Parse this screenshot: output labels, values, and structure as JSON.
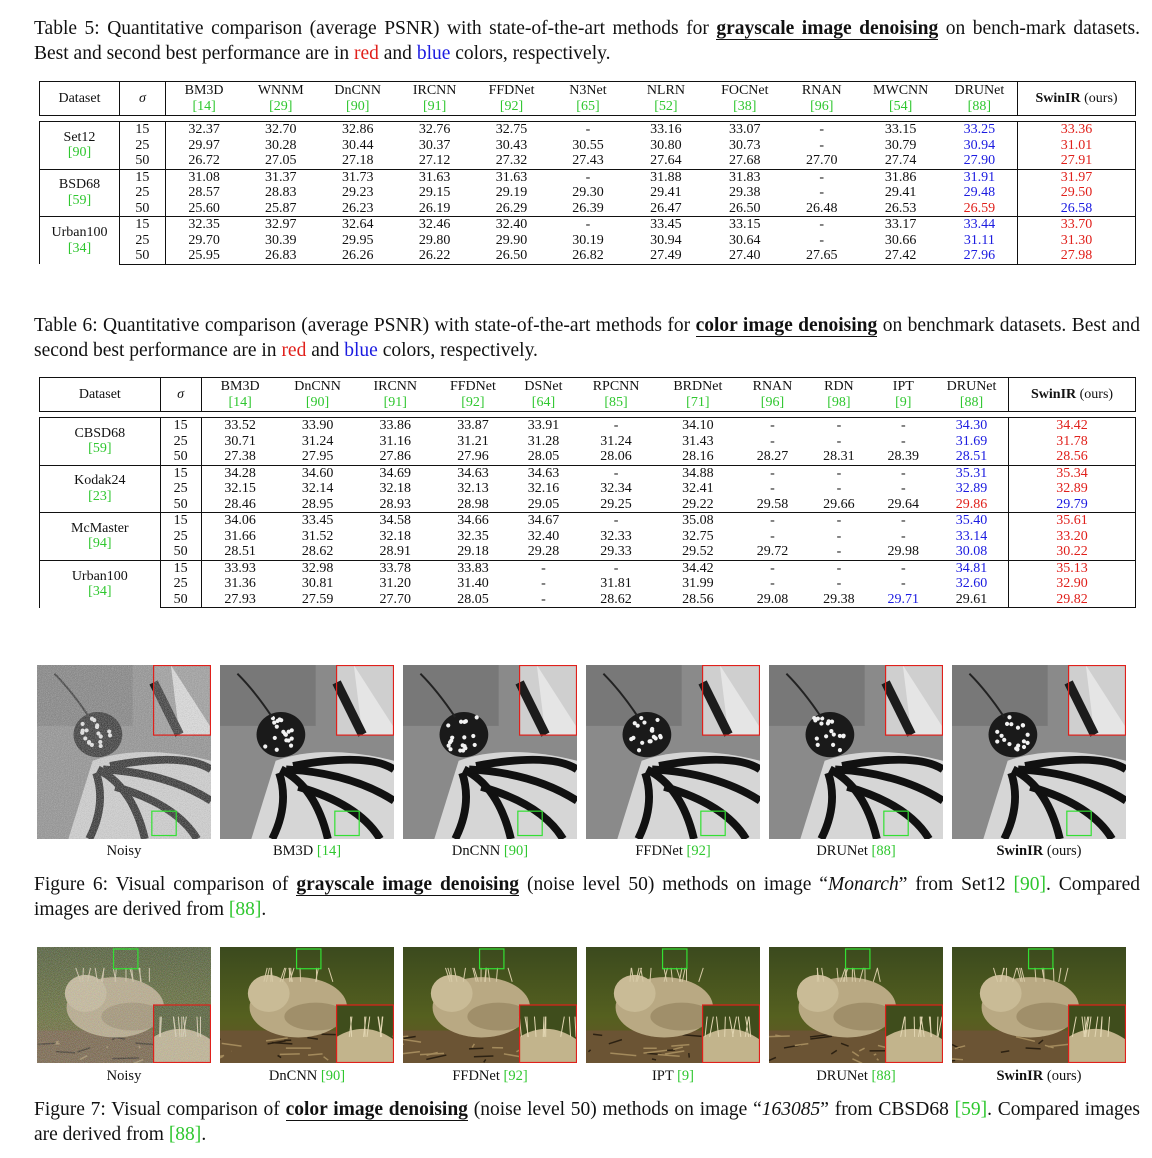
{
  "table5": {
    "caption_prefix": "Table 5: Quantitative comparison (average PSNR) with state-of-the-art methods for ",
    "caption_bold": "grayscale image denoising",
    "caption_mid": " on bench-mark datasets. Best and second best performance are in ",
    "caption_red": "red",
    "caption_and": " and ",
    "caption_blue": "blue",
    "caption_end": " colors, respectively.",
    "headers": [
      {
        "name": "BM3D",
        "ref": "[14]"
      },
      {
        "name": "WNNM",
        "ref": "[29]"
      },
      {
        "name": "DnCNN",
        "ref": "[90]"
      },
      {
        "name": "IRCNN",
        "ref": "[91]"
      },
      {
        "name": "FFDNet",
        "ref": "[92]"
      },
      {
        "name": "N3Net",
        "ref": "[65]"
      },
      {
        "name": "NLRN",
        "ref": "[52]"
      },
      {
        "name": "FOCNet",
        "ref": "[38]"
      },
      {
        "name": "RNAN",
        "ref": "[96]"
      },
      {
        "name": "MWCNN",
        "ref": "[54]"
      },
      {
        "name": "DRUNet",
        "ref": "[88]"
      }
    ],
    "col_dataset": "Dataset",
    "col_sigma": "σ",
    "col_ours_bold": "SwinIR",
    "col_ours_rest": " (ours)",
    "groups": [
      {
        "name": "Set12",
        "ref": "[90]",
        "rows": [
          {
            "sigma": "15",
            "vals": [
              "32.37",
              "32.70",
              "32.86",
              "32.76",
              "32.75",
              "-",
              "33.16",
              "33.07",
              "-",
              "33.15",
              "33.25",
              "33.36"
            ],
            "colors": [
              "",
              "",
              "",
              "",
              "",
              "",
              "",
              "",
              "",
              "",
              "b",
              "r"
            ]
          },
          {
            "sigma": "25",
            "vals": [
              "29.97",
              "30.28",
              "30.44",
              "30.37",
              "30.43",
              "30.55",
              "30.80",
              "30.73",
              "-",
              "30.79",
              "30.94",
              "31.01"
            ],
            "colors": [
              "",
              "",
              "",
              "",
              "",
              "",
              "",
              "",
              "",
              "",
              "b",
              "r"
            ]
          },
          {
            "sigma": "50",
            "vals": [
              "26.72",
              "27.05",
              "27.18",
              "27.12",
              "27.32",
              "27.43",
              "27.64",
              "27.68",
              "27.70",
              "27.74",
              "27.90",
              "27.91"
            ],
            "colors": [
              "",
              "",
              "",
              "",
              "",
              "",
              "",
              "",
              "",
              "",
              "b",
              "r"
            ]
          }
        ]
      },
      {
        "name": "BSD68",
        "ref": "[59]",
        "rows": [
          {
            "sigma": "15",
            "vals": [
              "31.08",
              "31.37",
              "31.73",
              "31.63",
              "31.63",
              "-",
              "31.88",
              "31.83",
              "-",
              "31.86",
              "31.91",
              "31.97"
            ],
            "colors": [
              "",
              "",
              "",
              "",
              "",
              "",
              "",
              "",
              "",
              "",
              "b",
              "r"
            ]
          },
          {
            "sigma": "25",
            "vals": [
              "28.57",
              "28.83",
              "29.23",
              "29.15",
              "29.19",
              "29.30",
              "29.41",
              "29.38",
              "-",
              "29.41",
              "29.48",
              "29.50"
            ],
            "colors": [
              "",
              "",
              "",
              "",
              "",
              "",
              "",
              "",
              "",
              "",
              "b",
              "r"
            ]
          },
          {
            "sigma": "50",
            "vals": [
              "25.60",
              "25.87",
              "26.23",
              "26.19",
              "26.29",
              "26.39",
              "26.47",
              "26.50",
              "26.48",
              "26.53",
              "26.59",
              "26.58"
            ],
            "colors": [
              "",
              "",
              "",
              "",
              "",
              "",
              "",
              "",
              "",
              "",
              "r",
              "b"
            ]
          }
        ]
      },
      {
        "name": "Urban100",
        "ref": "[34]",
        "rows": [
          {
            "sigma": "15",
            "vals": [
              "32.35",
              "32.97",
              "32.64",
              "32.46",
              "32.40",
              "-",
              "33.45",
              "33.15",
              "-",
              "33.17",
              "33.44",
              "33.70"
            ],
            "colors": [
              "",
              "",
              "",
              "",
              "",
              "",
              "",
              "",
              "",
              "",
              "b",
              "r"
            ]
          },
          {
            "sigma": "25",
            "vals": [
              "29.70",
              "30.39",
              "29.95",
              "29.80",
              "29.90",
              "30.19",
              "30.94",
              "30.64",
              "-",
              "30.66",
              "31.11",
              "31.30"
            ],
            "colors": [
              "",
              "",
              "",
              "",
              "",
              "",
              "",
              "",
              "",
              "",
              "b",
              "r"
            ]
          },
          {
            "sigma": "50",
            "vals": [
              "25.95",
              "26.83",
              "26.26",
              "26.22",
              "26.50",
              "26.82",
              "27.49",
              "27.40",
              "27.65",
              "27.42",
              "27.96",
              "27.98"
            ],
            "colors": [
              "",
              "",
              "",
              "",
              "",
              "",
              "",
              "",
              "",
              "",
              "b",
              "r"
            ]
          }
        ]
      }
    ]
  },
  "table6": {
    "caption_prefix": "Table 6: Quantitative comparison (average PSNR) with state-of-the-art methods for ",
    "caption_bold": "color image denoising",
    "caption_mid": " on benchmark datasets. Best and second best performance are in ",
    "caption_red": "red",
    "caption_and": " and ",
    "caption_blue": "blue",
    "caption_end": " colors, respectively.",
    "headers": [
      {
        "name": "BM3D",
        "ref": "[14]"
      },
      {
        "name": "DnCNN",
        "ref": "[90]"
      },
      {
        "name": "IRCNN",
        "ref": "[91]"
      },
      {
        "name": "FFDNet",
        "ref": "[92]"
      },
      {
        "name": "DSNet",
        "ref": "[64]"
      },
      {
        "name": "RPCNN",
        "ref": "[85]"
      },
      {
        "name": "BRDNet",
        "ref": "[71]"
      },
      {
        "name": "RNAN",
        "ref": "[96]"
      },
      {
        "name": "RDN",
        "ref": "[98]"
      },
      {
        "name": "IPT",
        "ref": "[9]"
      },
      {
        "name": "DRUNet",
        "ref": "[88]"
      }
    ],
    "col_dataset": "Dataset",
    "col_sigma": "σ",
    "col_ours_bold": "SwinIR",
    "col_ours_rest": " (ours)",
    "groups": [
      {
        "name": "CBSD68",
        "ref": "[59]",
        "rows": [
          {
            "sigma": "15",
            "vals": [
              "33.52",
              "33.90",
              "33.86",
              "33.87",
              "33.91",
              "-",
              "34.10",
              "-",
              "-",
              "-",
              "34.30",
              "34.42"
            ],
            "colors": [
              "",
              "",
              "",
              "",
              "",
              "",
              "",
              "",
              "",
              "",
              "b",
              "r"
            ]
          },
          {
            "sigma": "25",
            "vals": [
              "30.71",
              "31.24",
              "31.16",
              "31.21",
              "31.28",
              "31.24",
              "31.43",
              "-",
              "-",
              "-",
              "31.69",
              "31.78"
            ],
            "colors": [
              "",
              "",
              "",
              "",
              "",
              "",
              "",
              "",
              "",
              "",
              "b",
              "r"
            ]
          },
          {
            "sigma": "50",
            "vals": [
              "27.38",
              "27.95",
              "27.86",
              "27.96",
              "28.05",
              "28.06",
              "28.16",
              "28.27",
              "28.31",
              "28.39",
              "28.51",
              "28.56"
            ],
            "colors": [
              "",
              "",
              "",
              "",
              "",
              "",
              "",
              "",
              "",
              "",
              "b",
              "r"
            ]
          }
        ]
      },
      {
        "name": "Kodak24",
        "ref": "[23]",
        "rows": [
          {
            "sigma": "15",
            "vals": [
              "34.28",
              "34.60",
              "34.69",
              "34.63",
              "34.63",
              "-",
              "34.88",
              "-",
              "-",
              "-",
              "35.31",
              "35.34"
            ],
            "colors": [
              "",
              "",
              "",
              "",
              "",
              "",
              "",
              "",
              "",
              "",
              "b",
              "r"
            ]
          },
          {
            "sigma": "25",
            "vals": [
              "32.15",
              "32.14",
              "32.18",
              "32.13",
              "32.16",
              "32.34",
              "32.41",
              "-",
              "-",
              "-",
              "32.89",
              "32.89"
            ],
            "colors": [
              "",
              "",
              "",
              "",
              "",
              "",
              "",
              "",
              "",
              "",
              "b",
              "r"
            ]
          },
          {
            "sigma": "50",
            "vals": [
              "28.46",
              "28.95",
              "28.93",
              "28.98",
              "29.05",
              "29.25",
              "29.22",
              "29.58",
              "29.66",
              "29.64",
              "29.86",
              "29.79"
            ],
            "colors": [
              "",
              "",
              "",
              "",
              "",
              "",
              "",
              "",
              "",
              "",
              "r",
              "b"
            ]
          }
        ]
      },
      {
        "name": "McMaster",
        "ref": "[94]",
        "rows": [
          {
            "sigma": "15",
            "vals": [
              "34.06",
              "33.45",
              "34.58",
              "34.66",
              "34.67",
              "-",
              "35.08",
              "-",
              "-",
              "-",
              "35.40",
              "35.61"
            ],
            "colors": [
              "",
              "",
              "",
              "",
              "",
              "",
              "",
              "",
              "",
              "",
              "b",
              "r"
            ]
          },
          {
            "sigma": "25",
            "vals": [
              "31.66",
              "31.52",
              "32.18",
              "32.35",
              "32.40",
              "32.33",
              "32.75",
              "-",
              "-",
              "-",
              "33.14",
              "33.20"
            ],
            "colors": [
              "",
              "",
              "",
              "",
              "",
              "",
              "",
              "",
              "",
              "",
              "b",
              "r"
            ]
          },
          {
            "sigma": "50",
            "vals": [
              "28.51",
              "28.62",
              "28.91",
              "29.18",
              "29.28",
              "29.33",
              "29.52",
              "29.72",
              "-",
              "29.98",
              "30.08",
              "30.22"
            ],
            "colors": [
              "",
              "",
              "",
              "",
              "",
              "",
              "",
              "",
              "",
              "",
              "b",
              "r"
            ]
          }
        ]
      },
      {
        "name": "Urban100",
        "ref": "[34]",
        "rows": [
          {
            "sigma": "15",
            "vals": [
              "33.93",
              "32.98",
              "33.78",
              "33.83",
              "-",
              "-",
              "34.42",
              "-",
              "-",
              "-",
              "34.81",
              "35.13"
            ],
            "colors": [
              "",
              "",
              "",
              "",
              "",
              "",
              "",
              "",
              "",
              "",
              "b",
              "r"
            ]
          },
          {
            "sigma": "25",
            "vals": [
              "31.36",
              "30.81",
              "31.20",
              "31.40",
              "-",
              "31.81",
              "31.99",
              "-",
              "-",
              "-",
              "32.60",
              "32.90"
            ],
            "colors": [
              "",
              "",
              "",
              "",
              "",
              "",
              "",
              "",
              "",
              "",
              "b",
              "r"
            ]
          },
          {
            "sigma": "50",
            "vals": [
              "27.93",
              "27.59",
              "27.70",
              "28.05",
              "-",
              "28.62",
              "28.56",
              "29.08",
              "29.38",
              "29.71",
              "29.61",
              "29.82"
            ],
            "colors": [
              "",
              "",
              "",
              "",
              "",
              "",
              "",
              "",
              "",
              "b",
              "",
              "r"
            ]
          }
        ]
      }
    ]
  },
  "fig6": {
    "labels": [
      {
        "name": "Noisy",
        "ref": ""
      },
      {
        "name": "BM3D ",
        "ref": "[14]"
      },
      {
        "name": "DnCNN ",
        "ref": "[90]"
      },
      {
        "name": "FFDNet ",
        "ref": "[92]"
      },
      {
        "name": "DRUNet ",
        "ref": "[88]"
      },
      {
        "name": "SwinIR",
        "ref": " (ours)"
      }
    ],
    "caption_prefix": "Figure 6: Visual comparison of ",
    "caption_bold": "grayscale image denoising",
    "caption_mid": " (noise level 50) methods on image “",
    "caption_italic": "Monarch",
    "caption_mid2": "” from Set12 ",
    "caption_ref1": "[90]",
    "caption_mid3": ". Compared images are derived from ",
    "caption_ref2": "[88]",
    "caption_end": "."
  },
  "fig7": {
    "labels": [
      {
        "name": "Noisy",
        "ref": ""
      },
      {
        "name": "DnCNN ",
        "ref": "[90]"
      },
      {
        "name": "FFDNet ",
        "ref": "[92]"
      },
      {
        "name": "IPT ",
        "ref": "[9]"
      },
      {
        "name": "DRUNet ",
        "ref": "[88]"
      },
      {
        "name": "SwinIR",
        "ref": " (ours)"
      }
    ],
    "caption_prefix": "Figure 7: Visual comparison of ",
    "caption_bold": "color image denoising",
    "caption_mid": " (noise level 50) methods on image “",
    "caption_italic": "163085",
    "caption_mid2": "” from CBSD68 ",
    "caption_ref1": "[59]",
    "caption_mid3": ". Compared images are derived from ",
    "caption_ref2": "[88]",
    "caption_end": "."
  }
}
